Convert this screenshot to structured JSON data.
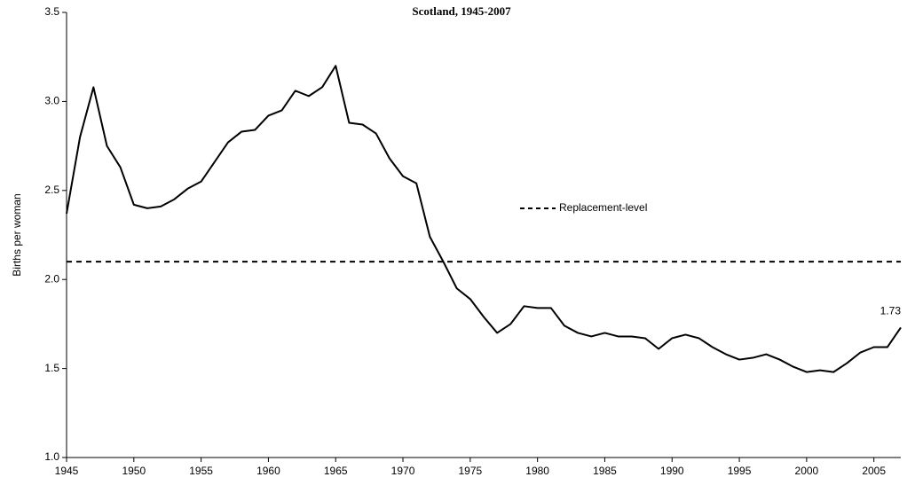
{
  "chart_data": {
    "type": "line",
    "title": "Scotland, 1945-2007",
    "y_label": "Births per woman",
    "x": [
      1945,
      1946,
      1947,
      1948,
      1949,
      1950,
      1951,
      1952,
      1953,
      1954,
      1955,
      1956,
      1957,
      1958,
      1959,
      1960,
      1961,
      1962,
      1963,
      1964,
      1965,
      1966,
      1967,
      1968,
      1969,
      1970,
      1971,
      1972,
      1973,
      1974,
      1975,
      1976,
      1977,
      1978,
      1979,
      1980,
      1981,
      1982,
      1983,
      1984,
      1985,
      1986,
      1987,
      1988,
      1989,
      1990,
      1991,
      1992,
      1993,
      1994,
      1995,
      1996,
      1997,
      1998,
      1999,
      2000,
      2001,
      2002,
      2003,
      2004,
      2005,
      2006,
      2007
    ],
    "series": [
      {
        "color": "#000000",
        "values": [
          2.37,
          2.8,
          3.08,
          2.75,
          2.63,
          2.42,
          2.4,
          2.41,
          2.45,
          2.51,
          2.55,
          2.66,
          2.77,
          2.83,
          2.84,
          2.92,
          2.95,
          3.06,
          3.03,
          3.08,
          3.2,
          2.88,
          2.87,
          2.82,
          2.68,
          2.58,
          2.54,
          2.24,
          2.1,
          1.95,
          1.89,
          1.79,
          1.7,
          1.75,
          1.85,
          1.84,
          1.84,
          1.74,
          1.7,
          1.68,
          1.7,
          1.68,
          1.68,
          1.67,
          1.61,
          1.67,
          1.69,
          1.67,
          1.62,
          1.58,
          1.55,
          1.56,
          1.58,
          1.55,
          1.51,
          1.48,
          1.49,
          1.48,
          1.53,
          1.59,
          1.62,
          1.62,
          1.73
        ]
      }
    ],
    "reference_line": {
      "name": "Replacement-level",
      "value": 2.1,
      "color": "#000000"
    },
    "xlim": [
      1945,
      2007
    ],
    "xticks": [
      1945,
      1950,
      1955,
      1960,
      1965,
      1970,
      1975,
      1980,
      1985,
      1990,
      1995,
      2000,
      2005
    ],
    "ylim": [
      1,
      3.5
    ],
    "yticks": [
      {
        "value": 1,
        "label": "1.0"
      },
      1.5,
      {
        "value": 2,
        "label": "2.0"
      },
      2.5,
      {
        "value": 3,
        "label": "3.0"
      },
      3.5
    ]
  }
}
